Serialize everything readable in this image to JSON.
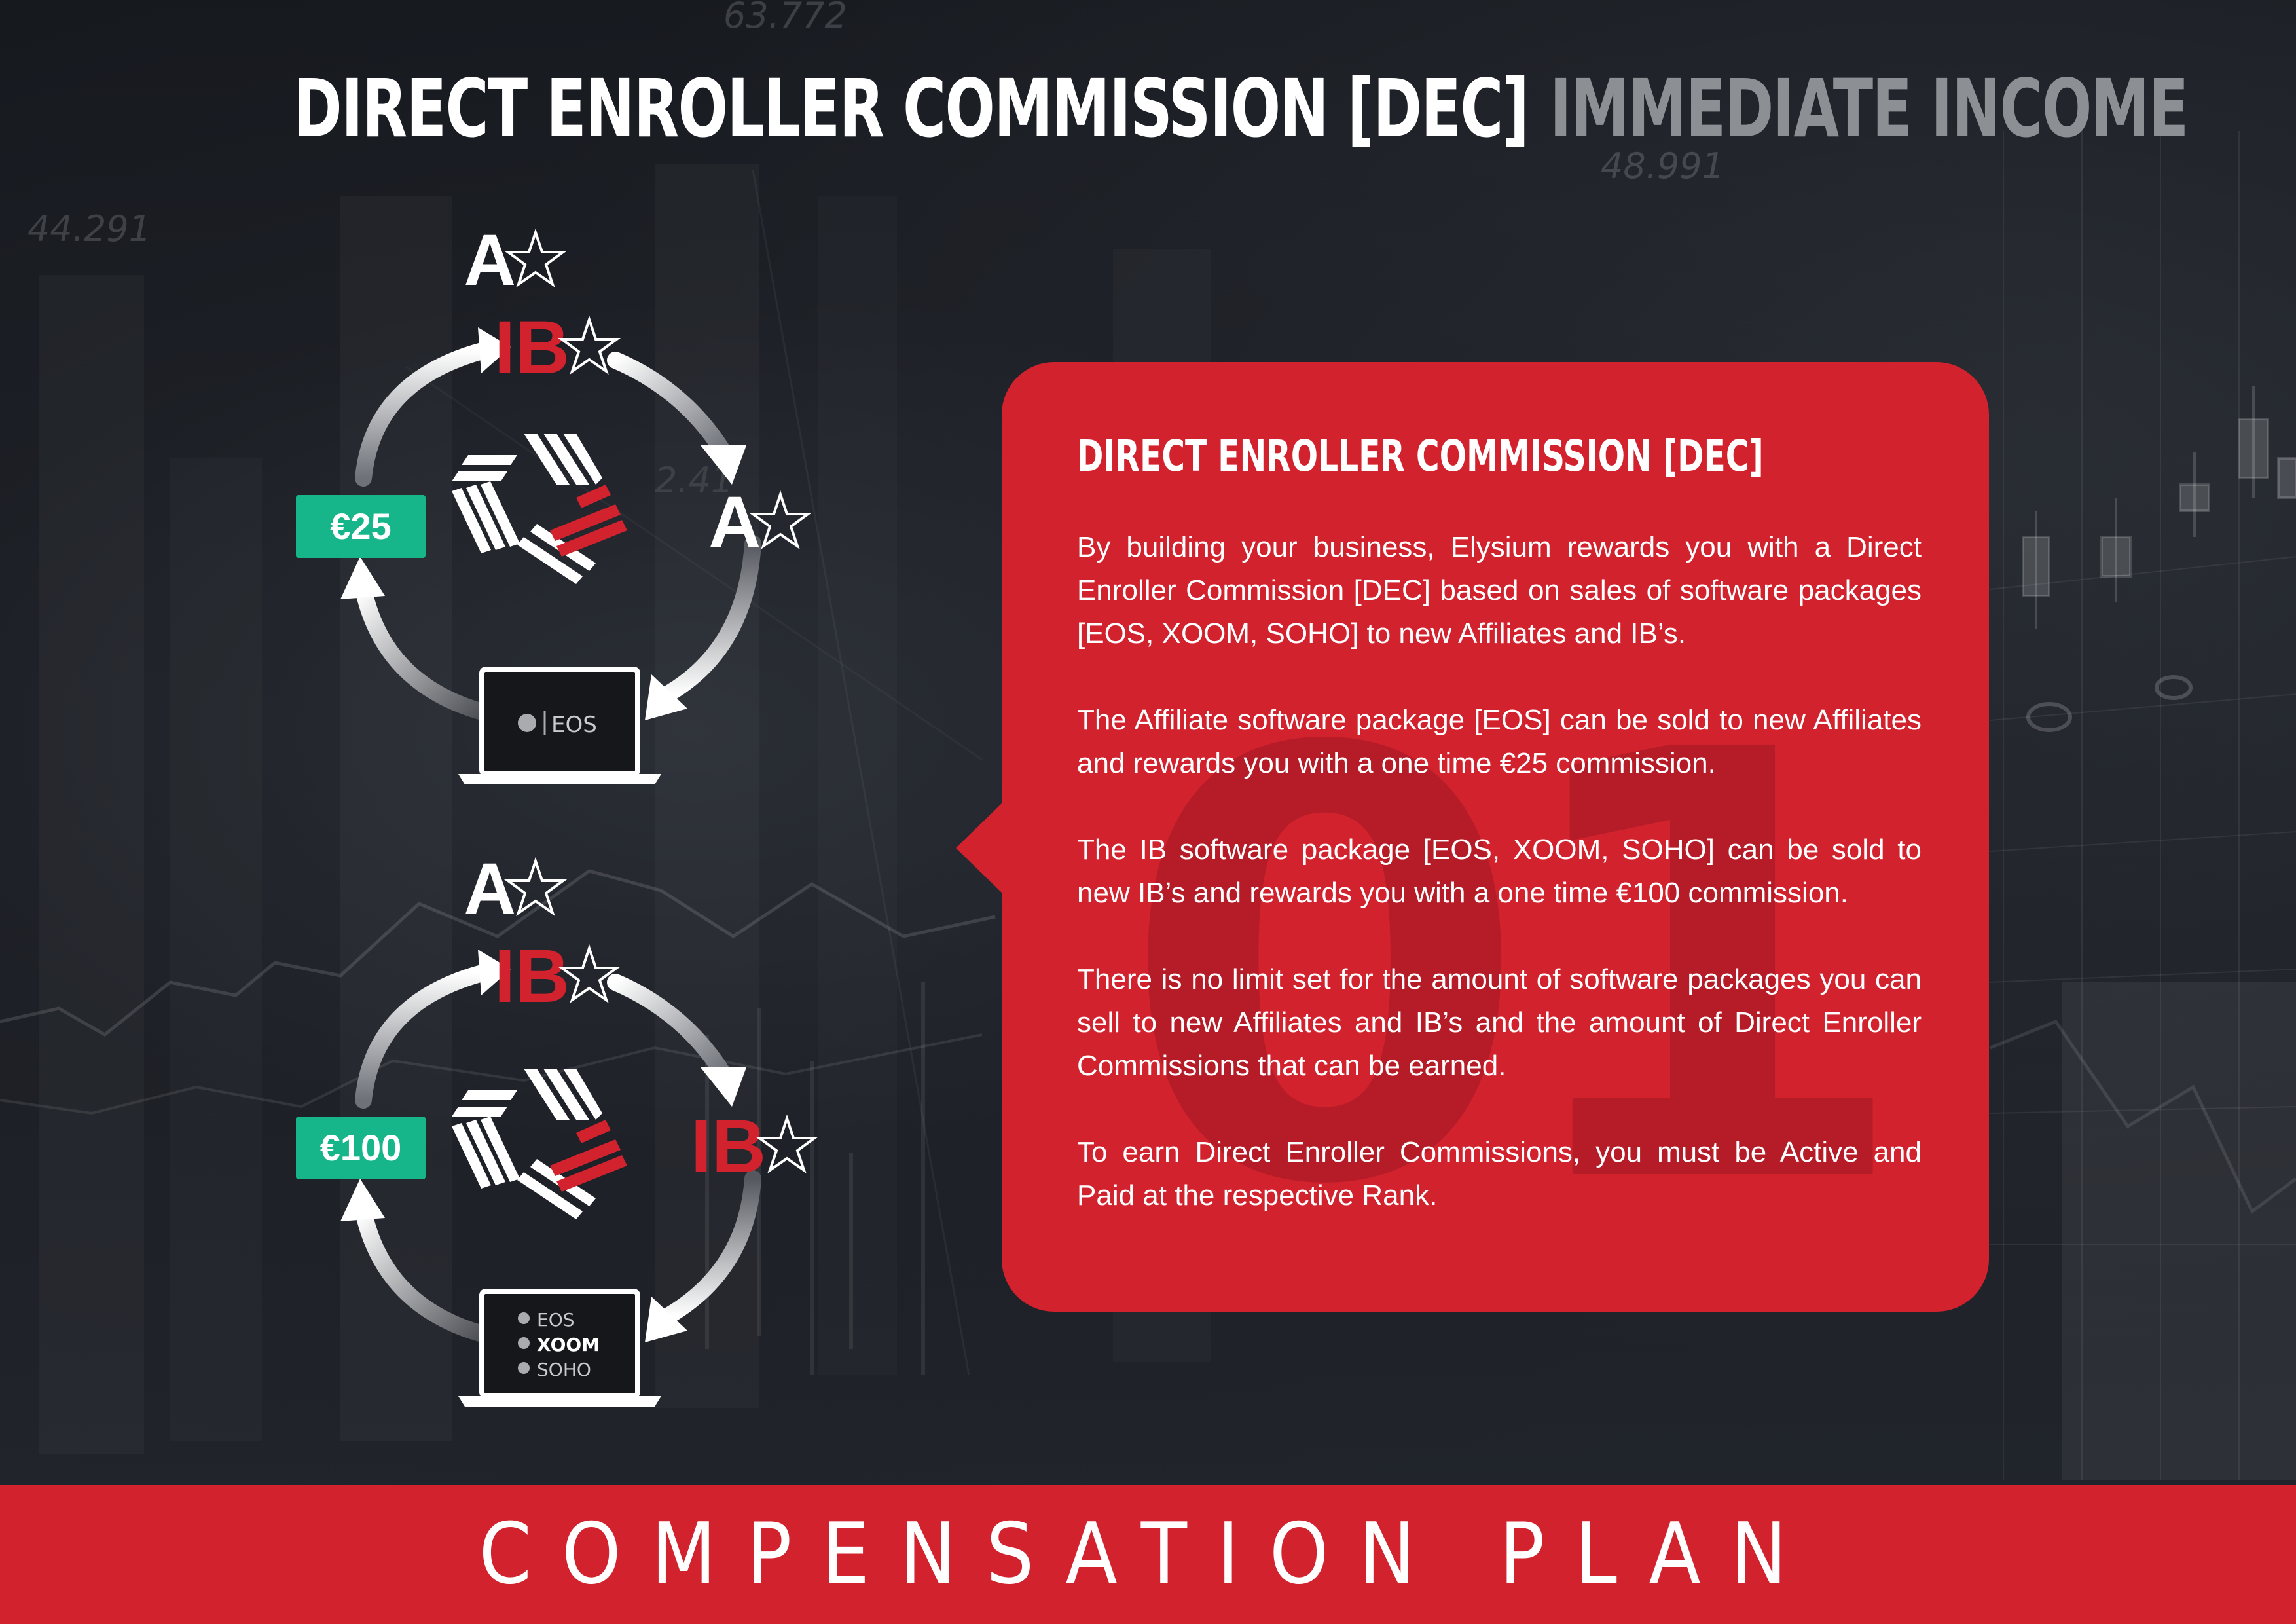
{
  "background": {
    "numbers": [
      "63.772",
      "48.991",
      "44.291",
      "2.41"
    ]
  },
  "heading": {
    "main": "DIRECT ENROLLER COMMISSION [DEC]",
    "sub": "IMMEDIATE INCOME"
  },
  "cycle_affiliate": {
    "roles": {
      "top": "A",
      "sponsor": "IB",
      "new_member": "A"
    },
    "commission": "€25",
    "products": [
      "EOS"
    ]
  },
  "cycle_ib": {
    "roles": {
      "top": "A",
      "sponsor": "IB",
      "new_member": "IB"
    },
    "commission": "€100",
    "products": [
      "EOS",
      "XOOM",
      "SOHO"
    ]
  },
  "panel": {
    "title": "DIRECT ENROLLER COMMISSION [DEC]",
    "watermark": "01",
    "paragraphs": [
      "By building your business, Elysium rewards you with a Direct Enroller Commission [DEC] based on sales of software packages [EOS, XOOM, SOHO] to new Affiliates and IB’s.",
      "The Affiliate software package [EOS] can be sold to new Affiliates and rewards you with a one time €25 commission.",
      "The IB software package [EOS, XOOM, SOHO] can be sold to new IB’s and rewards you with a one time €100 commission.",
      "There is no limit set for the amount of software packages you can sell to new Affiliates and IB’s and the amount of Direct Enroller Commissions that can be earned.",
      "To earn Direct Enroller Commissions, you must be Active and Paid at the respective Rank."
    ]
  },
  "footer": {
    "title": "COMPENSATION PLAN"
  },
  "colors": {
    "brand_red": "#d2222e",
    "commission_green": "#17b68a",
    "background": "#14171c",
    "heading_sub": "#8c8f94"
  },
  "icons": [
    "star-outline-icon",
    "elysium-logo-icon",
    "laptop-icon",
    "curved-arrow-icon"
  ]
}
